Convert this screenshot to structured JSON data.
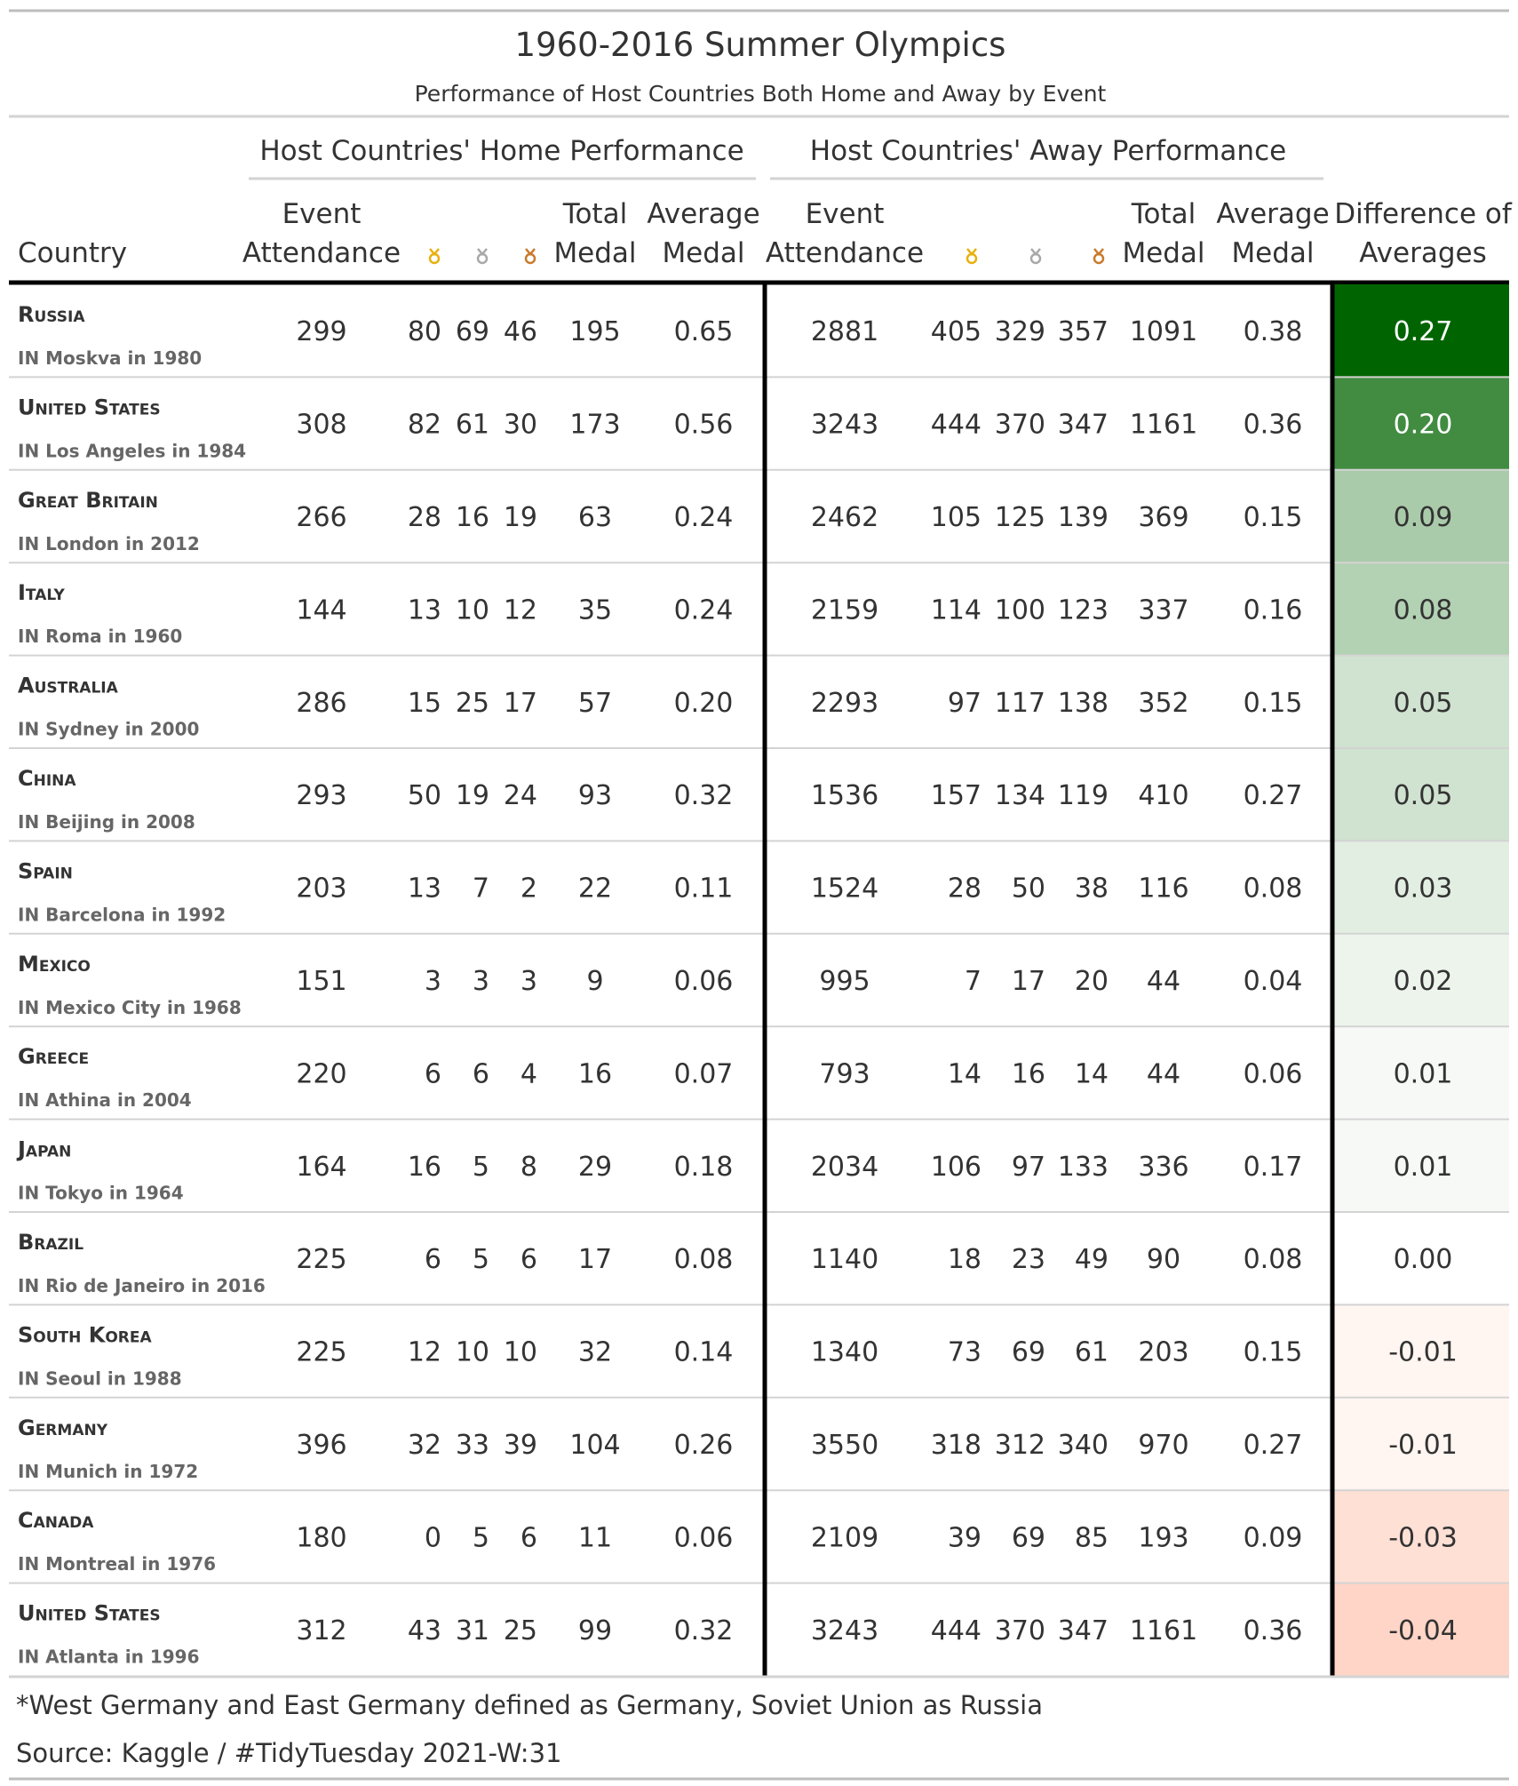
{
  "title": "1960-2016 Summer Olympics",
  "subtitle": "Performance of Host Countries Both Home and Away by Event",
  "spanners": {
    "home": "Host Countries' Home Performance",
    "away": "Host Countries' Away Performance"
  },
  "columns": {
    "country": "Country",
    "event_line1": "Event",
    "event_line2": "Attendance",
    "total_line1": "Total",
    "total_line2": "Medal",
    "avg_line1": "Average",
    "avg_line2": "Medal",
    "diff_line1": "Difference of",
    "diff_line2": "Averages",
    "medal_icons": [
      "gold-medal-icon",
      "silver-medal-icon",
      "bronze-medal-icon"
    ]
  },
  "medal_colors": {
    "gold": "#E8B00F",
    "silver": "#A8A8A8",
    "bronze": "#C97A2B"
  },
  "diff_scale": {
    "min": -0.04,
    "max": 0.27,
    "neg_color": "#FFD5C7",
    "pos_color": "#006400",
    "mid_color": "#FFFFFF"
  },
  "chart_data": {
    "type": "table",
    "columns": [
      "Country",
      "Host",
      "Home Event Attendance",
      "Home Gold",
      "Home Silver",
      "Home Bronze",
      "Home Total Medal",
      "Home Average Medal",
      "Away Event Attendance",
      "Away Gold",
      "Away Silver",
      "Away Bronze",
      "Away Total Medal",
      "Away Average Medal",
      "Difference of Averages"
    ],
    "rows": [
      {
        "country": "Russia",
        "host": "IN Moskva in 1980",
        "home": [
          "299",
          "80",
          "69",
          "46",
          "195",
          "0.65"
        ],
        "away": [
          "2881",
          "405",
          "329",
          "357",
          "1091",
          "0.38"
        ],
        "diff": "0.27",
        "diff_value": 0.27
      },
      {
        "country": "United States",
        "host": "IN Los Angeles in 1984",
        "home": [
          "308",
          "82",
          "61",
          "30",
          "173",
          "0.56"
        ],
        "away": [
          "3243",
          "444",
          "370",
          "347",
          "1161",
          "0.36"
        ],
        "diff": "0.20",
        "diff_value": 0.2
      },
      {
        "country": "Great Britain",
        "host": "IN London in 2012",
        "home": [
          "266",
          "28",
          "16",
          "19",
          "63",
          "0.24"
        ],
        "away": [
          "2462",
          "105",
          "125",
          "139",
          "369",
          "0.15"
        ],
        "diff": "0.09",
        "diff_value": 0.09
      },
      {
        "country": "Italy",
        "host": "IN Roma in 1960",
        "home": [
          "144",
          "13",
          "10",
          "12",
          "35",
          "0.24"
        ],
        "away": [
          "2159",
          "114",
          "100",
          "123",
          "337",
          "0.16"
        ],
        "diff": "0.08",
        "diff_value": 0.08
      },
      {
        "country": "Australia",
        "host": "IN Sydney in 2000",
        "home": [
          "286",
          "15",
          "25",
          "17",
          "57",
          "0.20"
        ],
        "away": [
          "2293",
          "97",
          "117",
          "138",
          "352",
          "0.15"
        ],
        "diff": "0.05",
        "diff_value": 0.05
      },
      {
        "country": "China",
        "host": "IN Beijing in 2008",
        "home": [
          "293",
          "50",
          "19",
          "24",
          "93",
          "0.32"
        ],
        "away": [
          "1536",
          "157",
          "134",
          "119",
          "410",
          "0.27"
        ],
        "diff": "0.05",
        "diff_value": 0.05
      },
      {
        "country": "Spain",
        "host": "IN Barcelona in 1992",
        "home": [
          "203",
          "13",
          "7",
          "2",
          "22",
          "0.11"
        ],
        "away": [
          "1524",
          "28",
          "50",
          "38",
          "116",
          "0.08"
        ],
        "diff": "0.03",
        "diff_value": 0.03
      },
      {
        "country": "Mexico",
        "host": "IN Mexico City in 1968",
        "home": [
          "151",
          "3",
          "3",
          "3",
          "9",
          "0.06"
        ],
        "away": [
          "995",
          "7",
          "17",
          "20",
          "44",
          "0.04"
        ],
        "diff": "0.02",
        "diff_value": 0.02
      },
      {
        "country": "Greece",
        "host": "IN Athina in 2004",
        "home": [
          "220",
          "6",
          "6",
          "4",
          "16",
          "0.07"
        ],
        "away": [
          "793",
          "14",
          "16",
          "14",
          "44",
          "0.06"
        ],
        "diff": "0.01",
        "diff_value": 0.01
      },
      {
        "country": "Japan",
        "host": "IN Tokyo in 1964",
        "home": [
          "164",
          "16",
          "5",
          "8",
          "29",
          "0.18"
        ],
        "away": [
          "2034",
          "106",
          "97",
          "133",
          "336",
          "0.17"
        ],
        "diff": "0.01",
        "diff_value": 0.01
      },
      {
        "country": "Brazil",
        "host": "IN Rio de Janeiro in 2016",
        "home": [
          "225",
          "6",
          "5",
          "6",
          "17",
          "0.08"
        ],
        "away": [
          "1140",
          "18",
          "23",
          "49",
          "90",
          "0.08"
        ],
        "diff": "0.00",
        "diff_value": 0.0
      },
      {
        "country": "South Korea",
        "host": "IN Seoul in 1988",
        "home": [
          "225",
          "12",
          "10",
          "10",
          "32",
          "0.14"
        ],
        "away": [
          "1340",
          "73",
          "69",
          "61",
          "203",
          "0.15"
        ],
        "diff": "-0.01",
        "diff_value": -0.01
      },
      {
        "country": "Germany",
        "host": "IN Munich in 1972",
        "home": [
          "396",
          "32",
          "33",
          "39",
          "104",
          "0.26"
        ],
        "away": [
          "3550",
          "318",
          "312",
          "340",
          "970",
          "0.27"
        ],
        "diff": "-0.01",
        "diff_value": -0.01
      },
      {
        "country": "Canada",
        "host": "IN Montreal in 1976",
        "home": [
          "180",
          "0",
          "5",
          "6",
          "11",
          "0.06"
        ],
        "away": [
          "2109",
          "39",
          "69",
          "85",
          "193",
          "0.09"
        ],
        "diff": "-0.03",
        "diff_value": -0.03
      },
      {
        "country": "United States",
        "host": "IN Atlanta in 1996",
        "home": [
          "312",
          "43",
          "31",
          "25",
          "99",
          "0.32"
        ],
        "away": [
          "3243",
          "444",
          "370",
          "347",
          "1161",
          "0.36"
        ],
        "diff": "-0.04",
        "diff_value": -0.04
      }
    ]
  },
  "footnote": "*West Germany and East Germany defined as Germany, Soviet Union as Russia",
  "source": "Source: Kaggle / #TidyTuesday 2021-W:31"
}
